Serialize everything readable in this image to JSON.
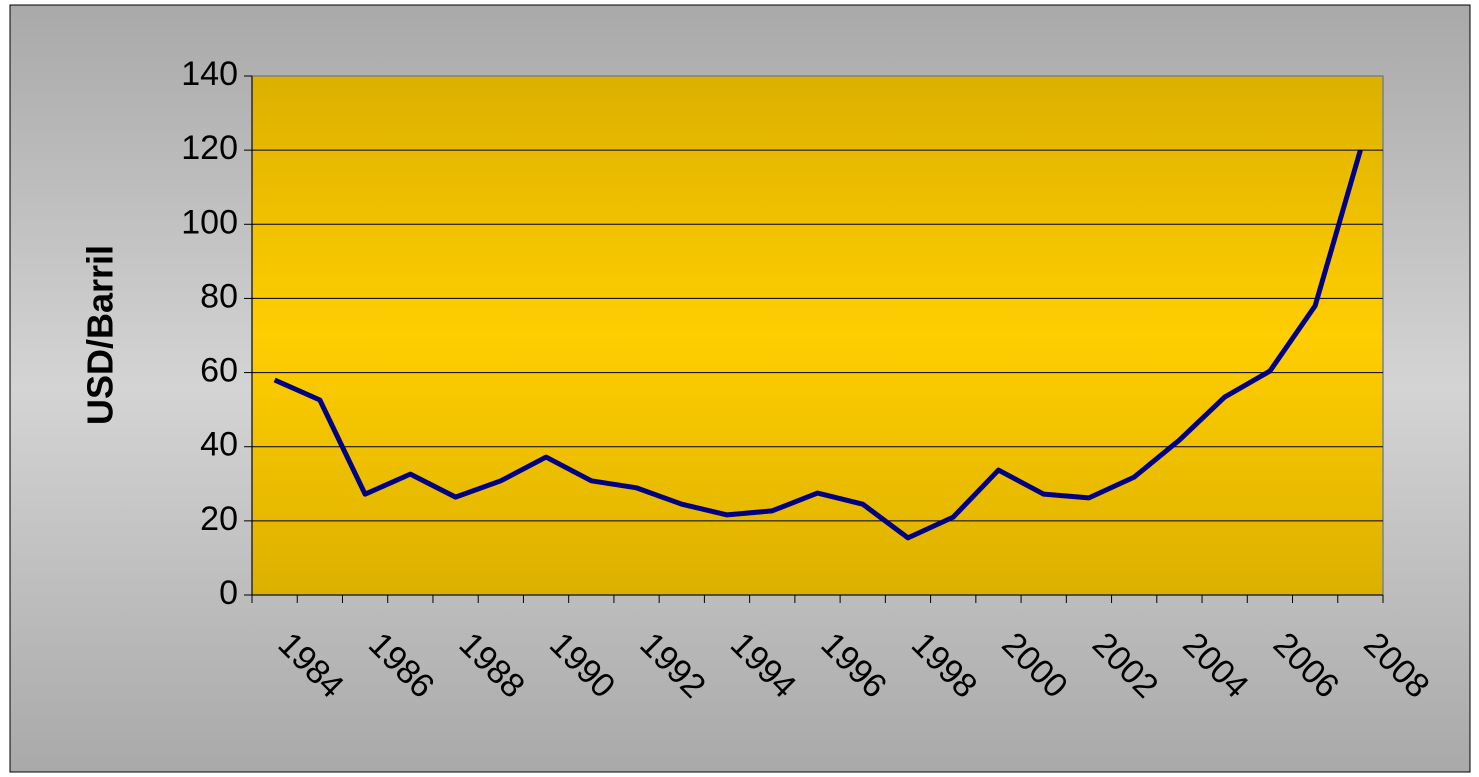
{
  "chart_data": {
    "type": "line",
    "y_label": "USD/Barril",
    "categories": [
      "1984",
      null,
      "1986",
      null,
      "1988",
      null,
      "1990",
      null,
      "1992",
      null,
      "1994",
      null,
      "1996",
      null,
      "1998",
      null,
      "2000",
      null,
      "2002",
      null,
      "2004",
      null,
      "2006",
      null,
      "2008"
    ],
    "series": [
      {
        "name": "USD/Barril",
        "color": "#000080",
        "values": [
          58,
          52.6,
          27.2,
          32.6,
          26.4,
          30.8,
          37.2,
          30.8,
          28.9,
          24.5,
          21.6,
          22.7,
          27.5,
          24.5,
          15.4,
          21,
          33.7,
          27.2,
          26.2,
          31.8,
          41.8,
          53.4,
          60.4,
          78,
          120
        ]
      }
    ],
    "ylim": [
      0,
      140
    ],
    "yticks": [
      0,
      20,
      40,
      60,
      80,
      100,
      120,
      140
    ],
    "grid": true
  }
}
